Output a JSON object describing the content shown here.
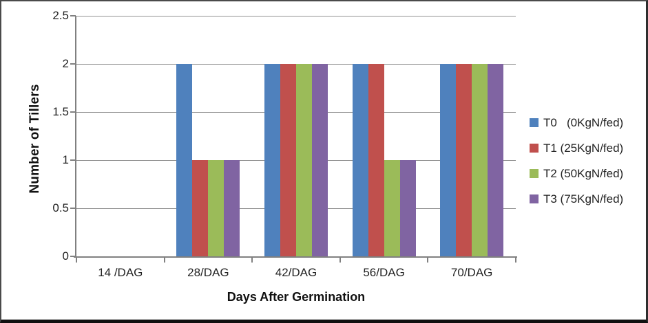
{
  "chart_data": {
    "type": "bar",
    "title": "",
    "xlabel": "Days After Germination",
    "ylabel": "Number of Tillers",
    "categories": [
      "14 /DAG",
      "28/DAG",
      "42/DAG",
      "56/DAG",
      "70/DAG"
    ],
    "series": [
      {
        "name": "T0   (0KgN/fed)",
        "color": "#4F81BD",
        "values": [
          0,
          2,
          2,
          2,
          2
        ]
      },
      {
        "name": "T1 (25KgN/fed)",
        "color": "#C0504D",
        "values": [
          0,
          1,
          2,
          2,
          2
        ]
      },
      {
        "name": "T2 (50KgN/fed)",
        "color": "#9BBB59",
        "values": [
          0,
          1,
          2,
          1,
          2
        ]
      },
      {
        "name": "T3 (75KgN/fed)",
        "color": "#8064A2",
        "values": [
          0,
          1,
          2,
          1,
          2
        ]
      }
    ],
    "ylim": [
      0,
      2.5
    ],
    "yticks": [
      "0",
      "0.5",
      "1",
      "1.5",
      "2",
      "2.5"
    ],
    "grid": true,
    "legend_position": "right",
    "axis_color": "#808080",
    "gridline_color": "#919191"
  }
}
